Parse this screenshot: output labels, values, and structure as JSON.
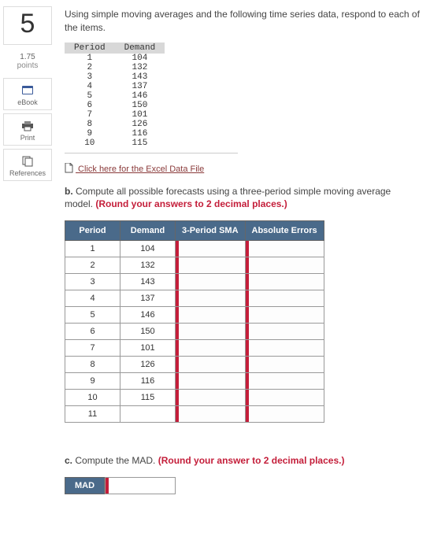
{
  "sidebar": {
    "question_number": "5",
    "points_value": "1.75",
    "points_label": "points",
    "ebook_label": "eBook",
    "print_label": "Print",
    "references_label": "References"
  },
  "prompt": "Using simple moving averages and the following time series data, respond to each of the items.",
  "data_table": {
    "headers": [
      "Period",
      "Demand"
    ],
    "rows": [
      [
        "1",
        "104"
      ],
      [
        "2",
        "132"
      ],
      [
        "3",
        "143"
      ],
      [
        "4",
        "137"
      ],
      [
        "5",
        "146"
      ],
      [
        "6",
        "150"
      ],
      [
        "7",
        "101"
      ],
      [
        "8",
        "126"
      ],
      [
        "9",
        "116"
      ],
      [
        "10",
        "115"
      ]
    ]
  },
  "excel_link": " Click here for the Excel Data File",
  "part_b": {
    "label": "b.",
    "text": " Compute all possible forecasts using a three-period simple moving average model. ",
    "round_note": "(Round your answers to 2 decimal places.)",
    "headers": [
      "Period",
      "Demand",
      "3-Period SMA",
      "Absolute Errors"
    ],
    "rows": [
      {
        "period": "1",
        "demand": "104"
      },
      {
        "period": "2",
        "demand": "132"
      },
      {
        "period": "3",
        "demand": "143"
      },
      {
        "period": "4",
        "demand": "137"
      },
      {
        "period": "5",
        "demand": "146"
      },
      {
        "period": "6",
        "demand": "150"
      },
      {
        "period": "7",
        "demand": "101"
      },
      {
        "period": "8",
        "demand": "126"
      },
      {
        "period": "9",
        "demand": "116"
      },
      {
        "period": "10",
        "demand": "115"
      },
      {
        "period": "11",
        "demand": ""
      }
    ]
  },
  "part_c": {
    "label": "c.",
    "text": " Compute the MAD. ",
    "round_note": "(Round your answer to 2 decimal places.)",
    "mad_label": "MAD"
  },
  "colors": {
    "header_bg": "#4a6a8a",
    "accent_red": "#c41e3a",
    "link_color": "#8a3a3a"
  }
}
